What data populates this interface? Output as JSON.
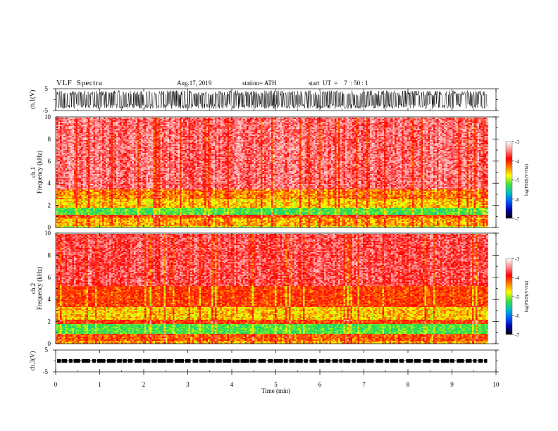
{
  "header": {
    "title": "VLF  Spectra",
    "date": "Aug.17, 2019",
    "station": "station= ATH",
    "start": "start  UT  =    7  : 50 : 1"
  },
  "colorbar": {
    "label": "log(PSD)(V²/Hz)",
    "ticks": [
      "-3",
      "-4",
      "-5",
      "-6",
      "-7"
    ],
    "stops": [
      "#ffffff",
      "#ff9090",
      "#ff0000",
      "#ff8000",
      "#ffff00",
      "#40e040",
      "#00c0c0",
      "#0060ff",
      "#0000b0",
      "#000000"
    ]
  },
  "chart_data": [
    {
      "type": "line",
      "name": "waveform ch.1",
      "ylabel": "ch.1(V)",
      "ylim": [
        -5,
        5
      ],
      "yticks": [
        "5",
        "-5"
      ],
      "x_range_min": [
        0,
        9.8
      ],
      "amplitude_envelope_V": 4.2,
      "color": "#000000"
    },
    {
      "type": "heatmap",
      "name": "spectrogram ch.1",
      "ylabel": "ch.1\nFrequency  (kHz)",
      "ylim": [
        0,
        10
      ],
      "yticks": [
        "10",
        "8",
        "6",
        "4",
        "2",
        "0"
      ],
      "xlim": [
        0,
        10
      ],
      "data_extent_min": 9.8,
      "bands_kHz_logPSD": [
        {
          "range": [
            0,
            0.25
          ],
          "logPSD": -4.6
        },
        {
          "range": [
            0.25,
            0.9
          ],
          "logPSD": -4.3
        },
        {
          "range": [
            0.9,
            1.2
          ],
          "logPSD": -4.0
        },
        {
          "range": [
            1.2,
            1.9
          ],
          "logPSD": -5.0
        },
        {
          "range": [
            1.9,
            2.6
          ],
          "logPSD": -4.4
        },
        {
          "range": [
            2.6,
            3.5
          ],
          "logPSD": -4.2
        },
        {
          "range": [
            3.5,
            10
          ],
          "logPSD": -3.5
        }
      ]
    },
    {
      "type": "heatmap",
      "name": "spectrogram ch.2",
      "ylabel": "ch.2\nFrequency  (kHz)",
      "ylim": [
        0,
        10
      ],
      "yticks": [
        "10",
        "8",
        "6",
        "4",
        "2",
        "0"
      ],
      "xlim": [
        0,
        10
      ],
      "data_extent_min": 9.8,
      "bands_kHz_logPSD": [
        {
          "range": [
            0,
            0.3
          ],
          "logPSD": -4.3
        },
        {
          "range": [
            0.3,
            0.9
          ],
          "logPSD": -4.1
        },
        {
          "range": [
            0.9,
            1.9
          ],
          "logPSD": -5.0
        },
        {
          "range": [
            1.9,
            2.2
          ],
          "logPSD": -4.0
        },
        {
          "range": [
            2.2,
            3.4
          ],
          "logPSD": -4.4
        },
        {
          "range": [
            3.4,
            5.3
          ],
          "logPSD": -4.0
        },
        {
          "range": [
            5.3,
            10
          ],
          "logPSD": -3.6
        }
      ]
    },
    {
      "type": "line",
      "name": "waveform ch.3",
      "ylabel": "ch.3(V)",
      "ylim": [
        -5,
        5
      ],
      "yticks": [
        "5",
        "-5"
      ],
      "xlim": [
        0,
        10
      ],
      "xticks": [
        "0",
        "1",
        "2",
        "3",
        "4",
        "5",
        "6",
        "7",
        "8",
        "9",
        "10"
      ],
      "xlabel": "Time  (min)",
      "level_V": 0,
      "amplitude_V": 0.6,
      "color": "#000000"
    }
  ]
}
